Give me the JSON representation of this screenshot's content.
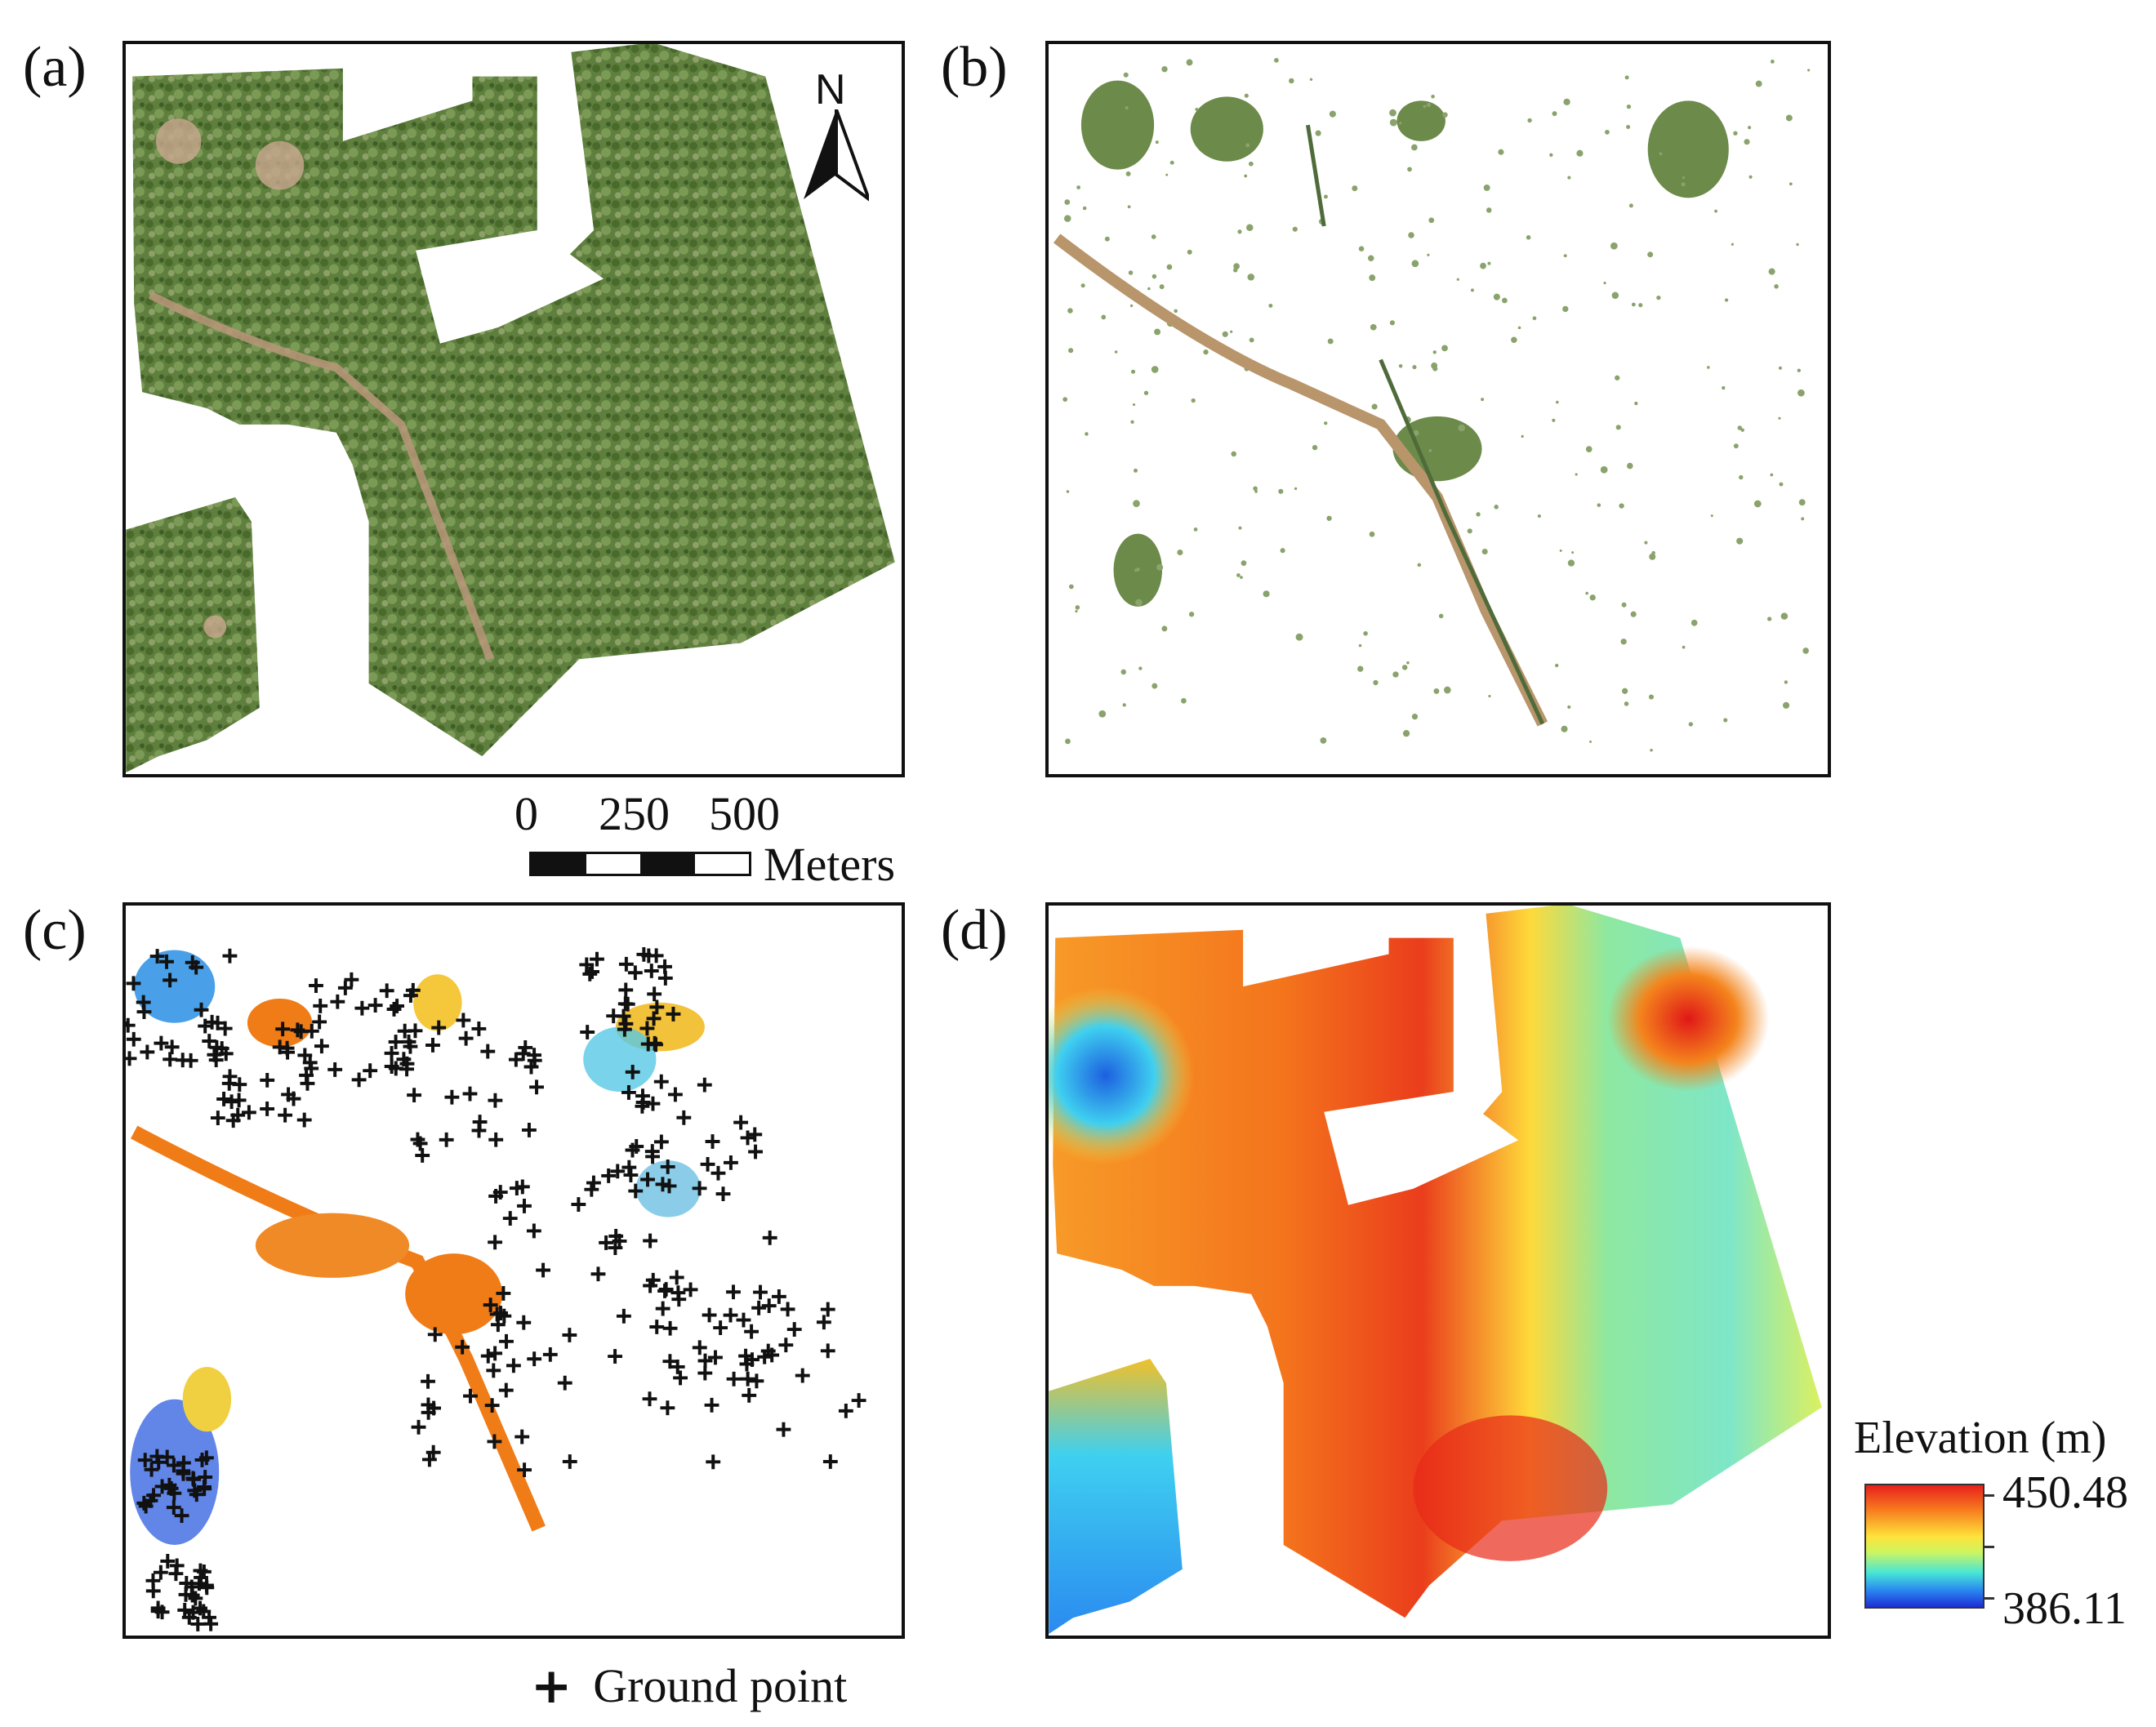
{
  "panels": {
    "a": {
      "label": "(a)"
    },
    "b": {
      "label": "(b)"
    },
    "c": {
      "label": "(c)"
    },
    "d": {
      "label": "(d)"
    }
  },
  "north_arrow": {
    "label": "N",
    "icon": "north-arrow-icon"
  },
  "scale_bar": {
    "ticks": [
      "0",
      "250",
      "500"
    ],
    "unit": "Meters"
  },
  "elevation_legend": {
    "title": "Elevation (m)",
    "max": "450.48",
    "min": "386.11",
    "colors": [
      "#e8201c",
      "#f77a1e",
      "#ffe23a",
      "#cdf560",
      "#47e6d7",
      "#2a8af0",
      "#1d2ed8"
    ]
  },
  "ground_legend": {
    "symbol": "+",
    "label": "Ground point"
  },
  "colors": {
    "vegetation": "#5e7e3a",
    "road": "#b29a6e",
    "ground_point": "#111111",
    "bare_orange": "#f07c18"
  }
}
